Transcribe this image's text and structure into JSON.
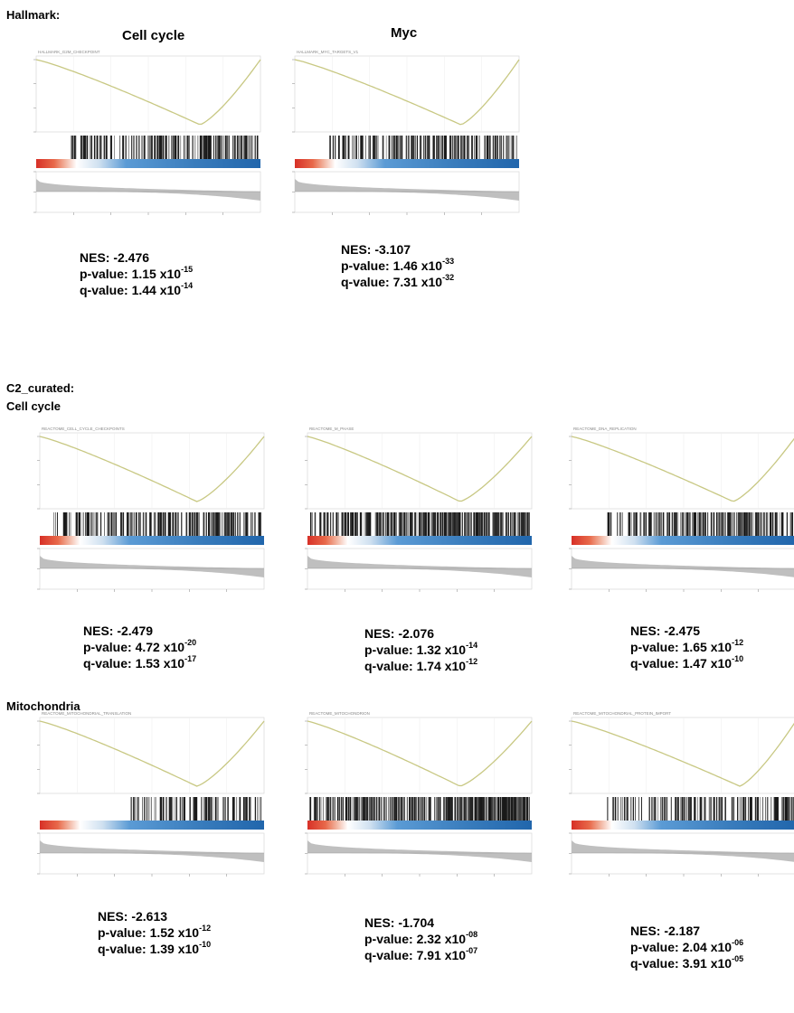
{
  "sections": {
    "hallmark": "Hallmark:",
    "c2": "C2_curated:",
    "c2_cell_cycle": "Cell cycle",
    "mitochondria": "Mitochondria"
  },
  "hallmark_titles": {
    "cell_cycle": "Cell cycle",
    "myc": "Myc"
  },
  "chart_data": [
    {
      "type": "line",
      "group": "Hallmark",
      "gene_set_label": "HALLMARK_G2M_CHECKPOINT",
      "title": "",
      "xlabel": "",
      "ylabel": "",
      "min_position": 0.73,
      "start_hits": 0.15,
      "hit_density": 0.62,
      "nes": "-2.476",
      "p_mant": "1.15",
      "p_exp": "-15",
      "q_mant": "1.44",
      "q_exp": "-14"
    },
    {
      "type": "line",
      "group": "Hallmark",
      "gene_set_label": "HALLMARK_MYC_TARGETS_V1",
      "title": "",
      "xlabel": "",
      "ylabel": "",
      "min_position": 0.74,
      "start_hits": 0.14,
      "hit_density": 0.6,
      "nes": "-3.107",
      "p_mant": "1.46",
      "p_exp": "-33",
      "q_mant": "7.31",
      "q_exp": "-32"
    },
    {
      "type": "line",
      "group": "C2_curated / Cell cycle",
      "gene_set_label": "REACTOME_CELL_CYCLE_CHECKPOINTS",
      "title": "",
      "xlabel": "",
      "ylabel": "",
      "min_position": 0.7,
      "start_hits": 0.04,
      "hit_density": 0.7,
      "nes": "-2.479",
      "p_mant": "4.72",
      "p_exp": "-20",
      "q_mant": "1.53",
      "q_exp": "-17"
    },
    {
      "type": "line",
      "group": "C2_curated / Cell cycle",
      "gene_set_label": "REACTOME_M_PHASE",
      "title": "",
      "xlabel": "",
      "ylabel": "",
      "min_position": 0.68,
      "start_hits": 0.0,
      "hit_density": 0.85,
      "nes": "-2.076",
      "p_mant": "1.32",
      "p_exp": "-14",
      "q_mant": "1.74",
      "q_exp": "-12"
    },
    {
      "type": "line",
      "group": "C2_curated / Cell cycle",
      "gene_set_label": "REACTOME_DNA_REPLICATION",
      "title": "",
      "xlabel": "",
      "ylabel": "",
      "min_position": 0.72,
      "start_hits": 0.15,
      "hit_density": 0.6,
      "nes": "-2.475",
      "p_mant": "1.65",
      "p_exp": "-12",
      "q_mant": "1.47",
      "q_exp": "-10"
    },
    {
      "type": "line",
      "group": "C2_curated / Mitochondria",
      "gene_set_label": "REACTOME_MITOCHONDRIAL_TRANSLATION",
      "title": "",
      "xlabel": "",
      "ylabel": "",
      "min_position": 0.7,
      "start_hits": 0.38,
      "hit_density": 0.55,
      "nes": "-2.613",
      "p_mant": "1.52",
      "p_exp": "-12",
      "q_mant": "1.39",
      "q_exp": "-10"
    },
    {
      "type": "line",
      "group": "C2_curated / Mitochondria",
      "gene_set_label": "REACTOME_MITOCHONDRION",
      "title": "",
      "xlabel": "",
      "ylabel": "",
      "min_position": 0.68,
      "start_hits": 0.0,
      "hit_density": 0.95,
      "nes": "-1.704",
      "p_mant": "2.32",
      "p_exp": "-08",
      "q_mant": "7.91",
      "q_exp": "-07"
    },
    {
      "type": "line",
      "group": "C2_curated / Mitochondria",
      "gene_set_label": "REACTOME_MITOCHONDRIAL_PROTEIN_IMPORT",
      "title": "",
      "xlabel": "",
      "ylabel": "",
      "min_position": 0.75,
      "start_hits": 0.15,
      "hit_density": 0.5,
      "nes": "-2.187",
      "p_mant": "2.04",
      "p_exp": "-06",
      "q_mant": "3.91",
      "q_exp": "-05"
    }
  ],
  "colors": {
    "curve": "#c8c883",
    "red": "#d73027",
    "blue": "#2166ac",
    "mid_blue": "#5b9bd5",
    "metric": "#bfbfbf"
  }
}
